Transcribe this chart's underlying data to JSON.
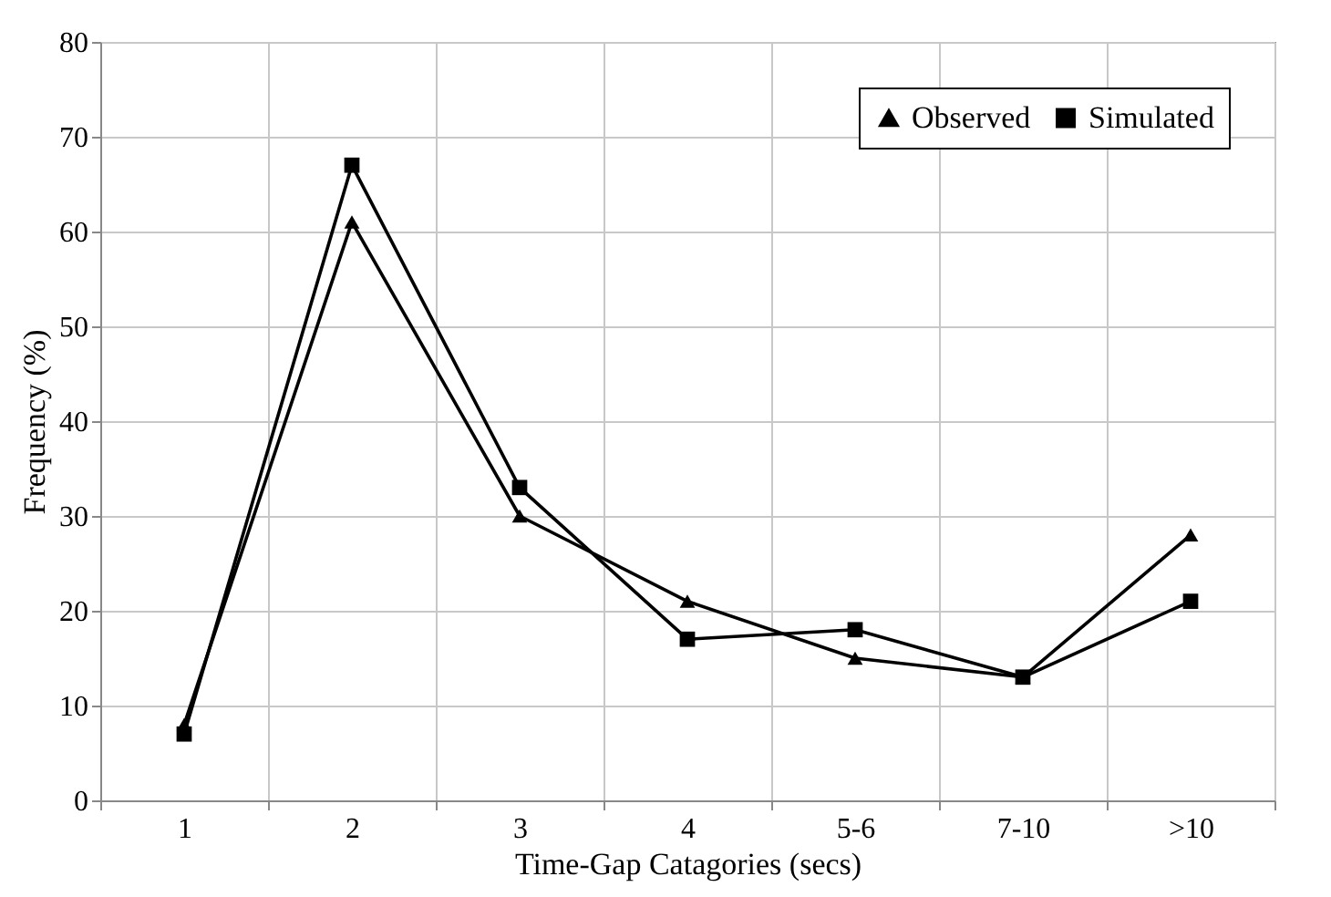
{
  "chart_data": {
    "type": "line",
    "xlabel": "Time-Gap Catagories (secs)",
    "ylabel": "Frequency (%)",
    "categories": [
      "1",
      "2",
      "3",
      "4",
      "5-6",
      "7-10",
      ">10"
    ],
    "series": [
      {
        "name": "Observed",
        "color": "#000000",
        "marker": "triangle",
        "values": [
          8,
          61,
          30,
          21,
          15,
          13,
          28
        ]
      },
      {
        "name": "Simulated",
        "color": "#000000",
        "marker": "square",
        "values": [
          7,
          67,
          33,
          17,
          18,
          13,
          21
        ]
      }
    ],
    "ylim": [
      0,
      80
    ],
    "yticks": [
      0,
      10,
      20,
      30,
      40,
      50,
      60,
      70,
      80
    ],
    "grid": true,
    "legend": "top right",
    "line_style": "solid"
  }
}
